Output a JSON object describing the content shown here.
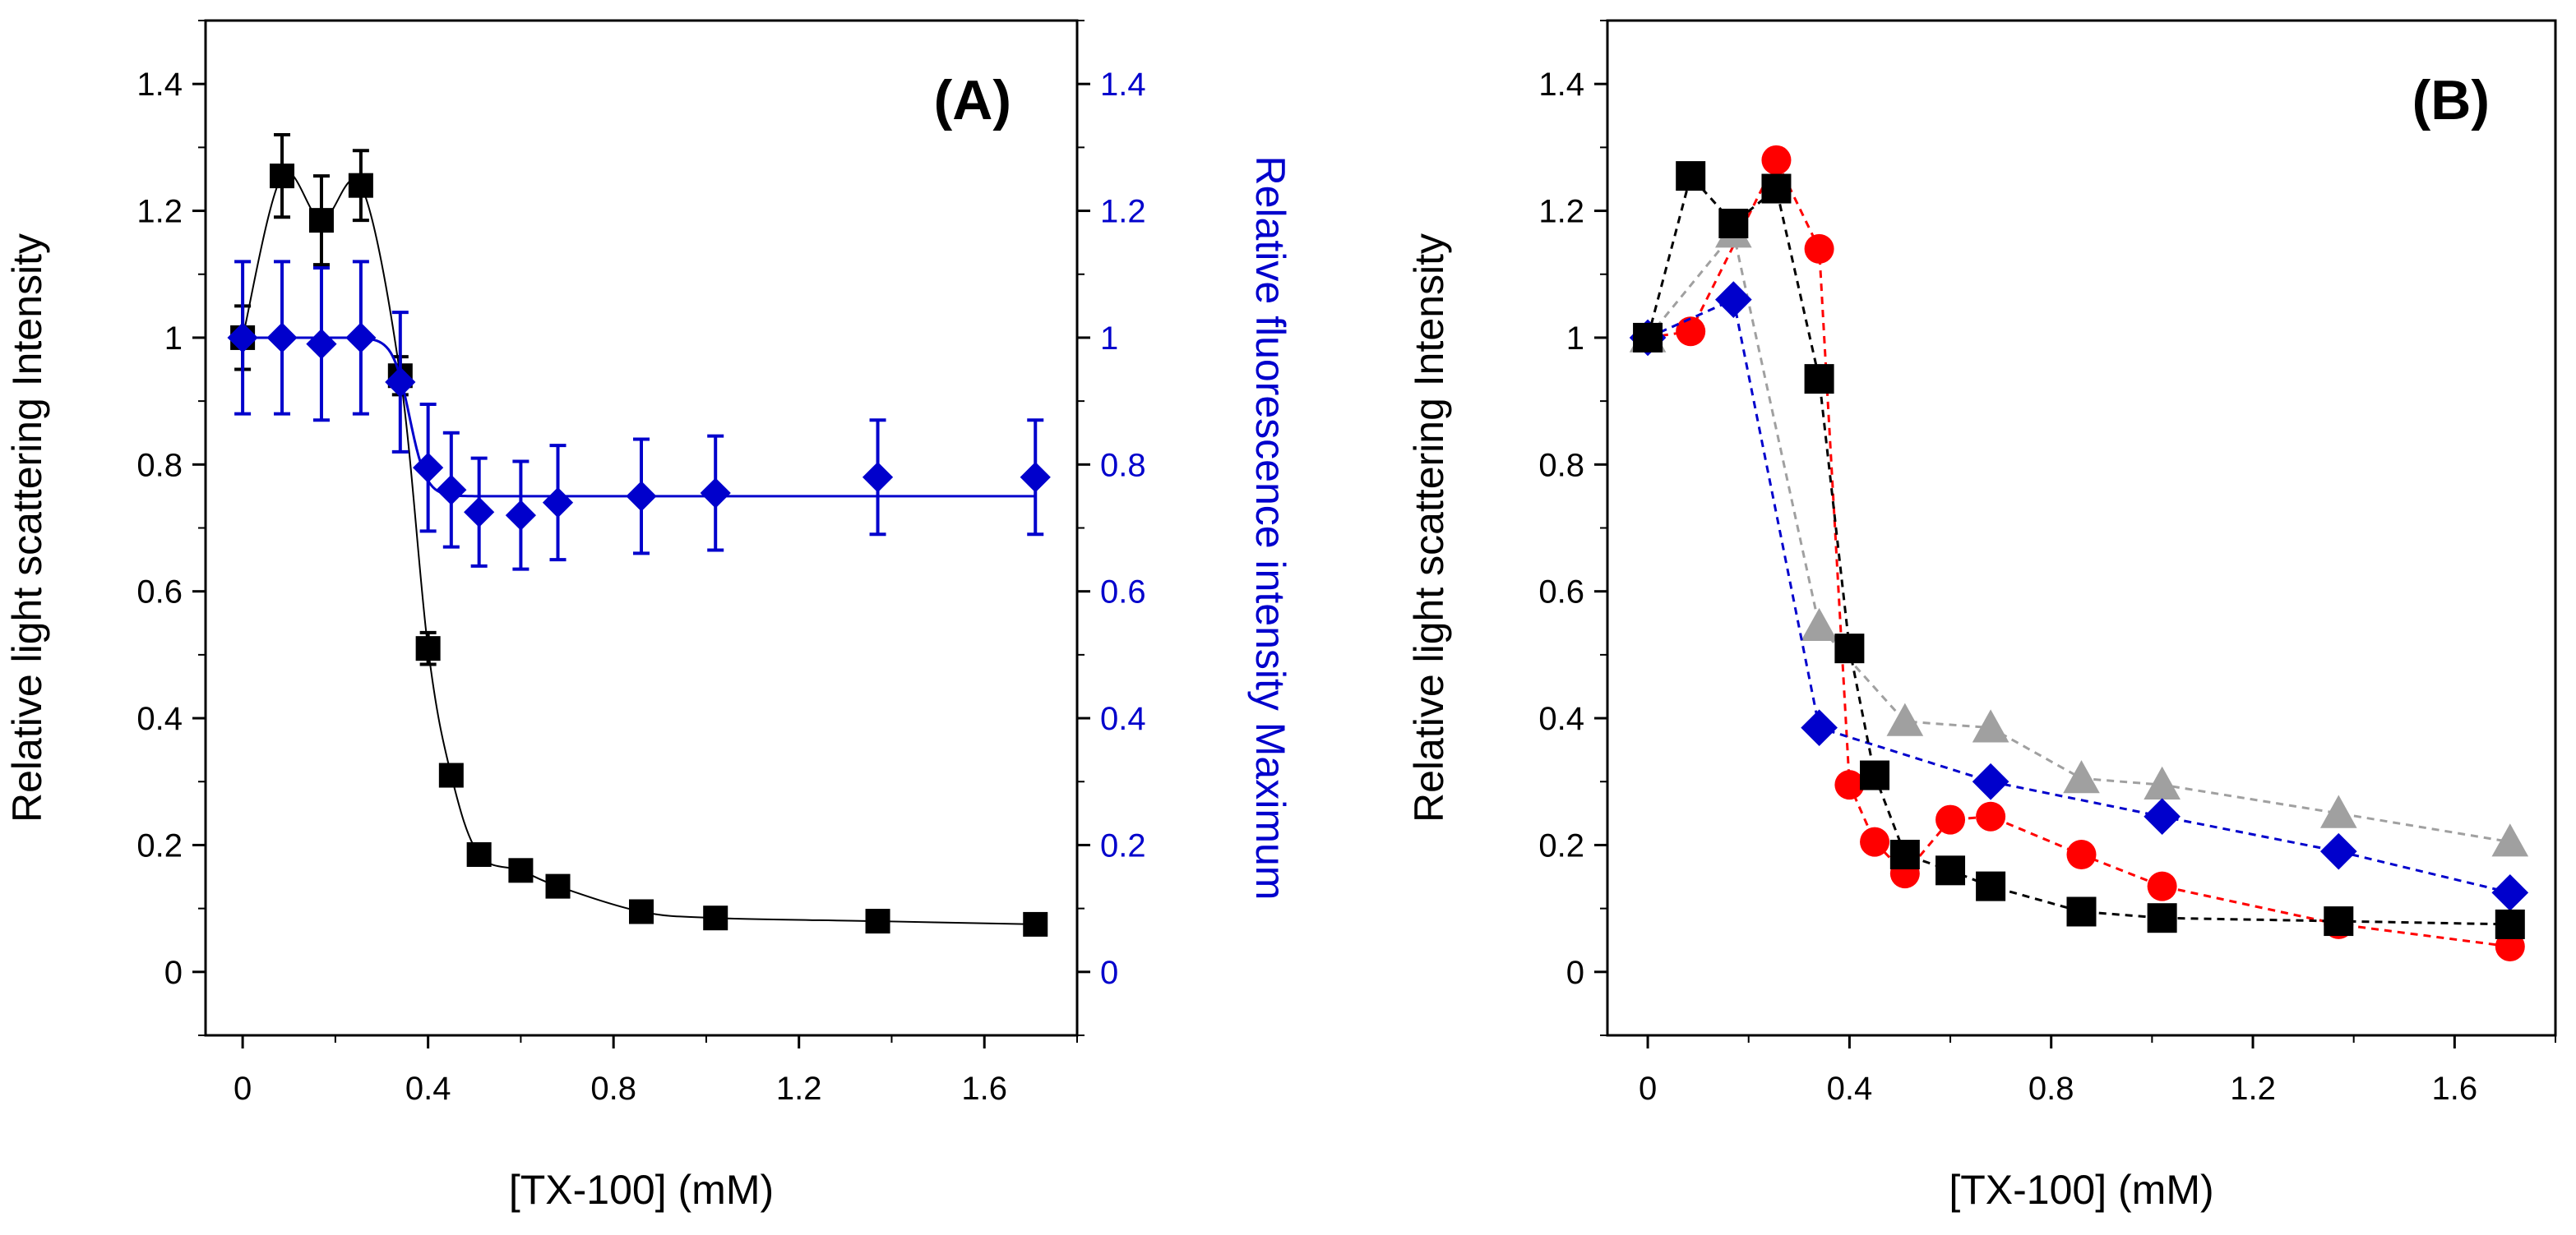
{
  "chart_data": [
    {
      "panel": "A",
      "type": "line",
      "title": "(A)",
      "xlabel": "[TX-100] (mM)",
      "ylabel": "Relative light scattering Intensity",
      "ylabel_right": "Relative fluorescence intensity Maximum",
      "xlim": [
        -0.08,
        1.8
      ],
      "ylim": [
        -0.1,
        1.5
      ],
      "ylim_right": [
        -0.1,
        1.5
      ],
      "x_ticks": [
        0,
        0.4,
        0.8,
        1.2,
        1.6
      ],
      "x_tick_labels": [
        "0",
        "0.4",
        "0.8",
        "1.2",
        "1.6"
      ],
      "y_ticks": [
        0,
        0.2,
        0.4,
        0.6,
        0.8,
        1,
        1.2,
        1.4
      ],
      "y_tick_labels": [
        "0",
        "0.2",
        "0.4",
        "0.6",
        "0.8",
        "1",
        "1.2",
        "1.4"
      ],
      "y_right_ticks": [
        0,
        0.2,
        0.4,
        0.6,
        0.8,
        1,
        1.2,
        1.4
      ],
      "y_right_tick_labels": [
        "0",
        "0.2",
        "0.4",
        "0.6",
        "0.8",
        "1",
        "1.2",
        "1.4"
      ],
      "series": [
        {
          "name": "Light scattering",
          "axis": "left",
          "color": "#000000",
          "marker": "square",
          "connector": "spline",
          "x": [
            0,
            0.085,
            0.17,
            0.255,
            0.34,
            0.4,
            0.45,
            0.51,
            0.6,
            0.68,
            0.86,
            1.02,
            1.37,
            1.71
          ],
          "y": [
            1.0,
            1.255,
            1.185,
            1.24,
            0.94,
            0.51,
            0.31,
            0.185,
            0.16,
            0.135,
            0.095,
            0.085,
            0.08,
            0.075
          ],
          "err": [
            0.05,
            0.065,
            0.07,
            0.055,
            0.03,
            0.025,
            0.0,
            0.0,
            0.0,
            0.0,
            0.0,
            0.0,
            0.0,
            0.0
          ]
        },
        {
          "name": "Fluorescence maximum",
          "axis": "right",
          "color": "#0000cc",
          "marker": "diamond",
          "connector": "smooth-fit",
          "x": [
            0,
            0.085,
            0.17,
            0.255,
            0.34,
            0.4,
            0.45,
            0.51,
            0.6,
            0.68,
            0.86,
            1.02,
            1.37,
            1.71
          ],
          "y": [
            1.0,
            1.0,
            0.99,
            1.0,
            0.93,
            0.795,
            0.76,
            0.725,
            0.72,
            0.74,
            0.75,
            0.755,
            0.78,
            0.78
          ],
          "err": [
            0.12,
            0.12,
            0.12,
            0.12,
            0.11,
            0.1,
            0.09,
            0.085,
            0.085,
            0.09,
            0.09,
            0.09,
            0.09,
            0.09
          ],
          "fit_plateau": 0.75
        }
      ]
    },
    {
      "panel": "B",
      "type": "line",
      "title": "(B)",
      "xlabel": "[TX-100] (mM)",
      "ylabel": "Relative light scattering Intensity",
      "xlim": [
        -0.08,
        1.8
      ],
      "ylim": [
        -0.1,
        1.5
      ],
      "x_ticks": [
        0,
        0.4,
        0.8,
        1.2,
        1.6
      ],
      "x_tick_labels": [
        "0",
        "0.4",
        "0.8",
        "1.2",
        "1.6"
      ],
      "y_ticks": [
        0,
        0.2,
        0.4,
        0.6,
        0.8,
        1,
        1.2,
        1.4
      ],
      "y_tick_labels": [
        "0",
        "0.2",
        "0.4",
        "0.6",
        "0.8",
        "1",
        "1.2",
        "1.4"
      ],
      "series": [
        {
          "name": "Red circles",
          "color": "#ff0000",
          "marker": "circle",
          "connector": "dashed",
          "x": [
            0,
            0.085,
            0.255,
            0.34,
            0.4,
            0.45,
            0.51,
            0.6,
            0.68,
            0.86,
            1.02,
            1.37,
            1.71
          ],
          "y": [
            1.0,
            1.01,
            1.28,
            1.14,
            0.295,
            0.205,
            0.155,
            0.24,
            0.245,
            0.185,
            0.135,
            0.075,
            0.04
          ]
        },
        {
          "name": "Gray triangles",
          "color": "#a0a0a0",
          "marker": "triangle",
          "connector": "dashed",
          "x": [
            0,
            0.17,
            0.34,
            0.51,
            0.68,
            0.86,
            1.02,
            1.37,
            1.71
          ],
          "y": [
            1.0,
            1.165,
            0.545,
            0.395,
            0.385,
            0.305,
            0.295,
            0.25,
            0.205
          ]
        },
        {
          "name": "Blue diamonds",
          "color": "#0000cc",
          "marker": "diamond",
          "connector": "dashed",
          "x": [
            0,
            0.17,
            0.34,
            0.68,
            1.02,
            1.37,
            1.71
          ],
          "y": [
            1.0,
            1.06,
            0.385,
            0.3,
            0.245,
            0.19,
            0.125
          ]
        },
        {
          "name": "Black squares",
          "color": "#000000",
          "marker": "square",
          "connector": "dashed",
          "x": [
            0,
            0.085,
            0.17,
            0.255,
            0.34,
            0.4,
            0.45,
            0.51,
            0.6,
            0.68,
            0.86,
            1.02,
            1.37,
            1.71
          ],
          "y": [
            1.0,
            1.255,
            1.18,
            1.235,
            0.935,
            0.51,
            0.31,
            0.185,
            0.16,
            0.135,
            0.095,
            0.085,
            0.08,
            0.075
          ]
        }
      ]
    }
  ]
}
